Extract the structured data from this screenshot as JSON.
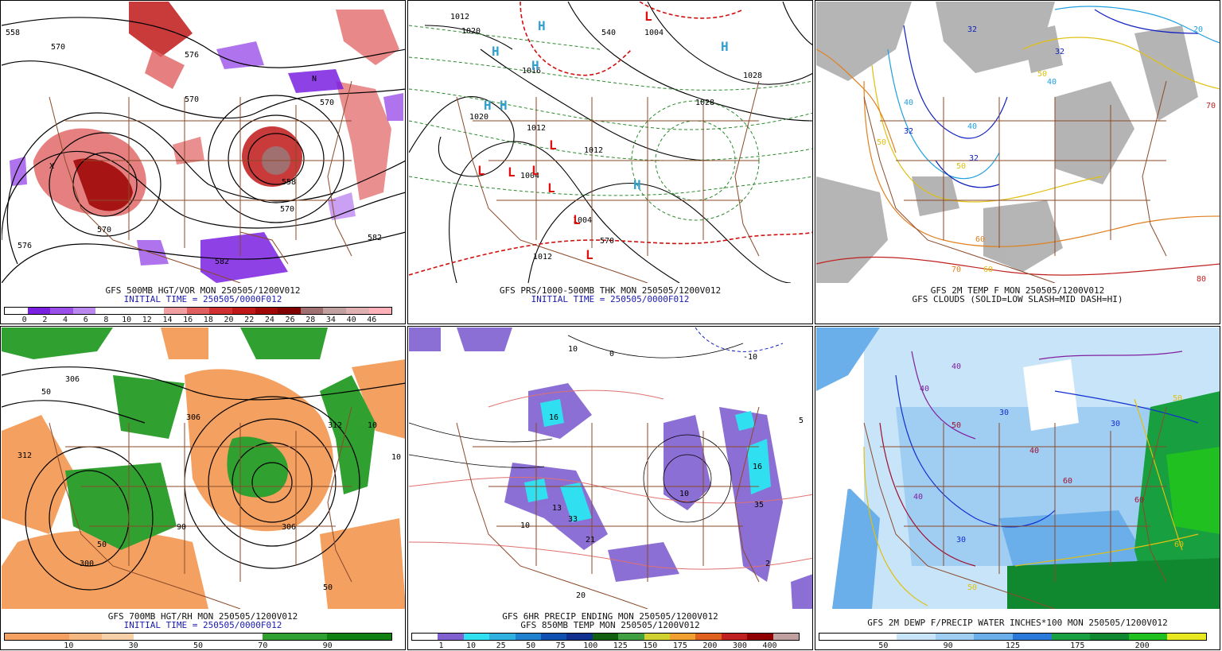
{
  "panels": [
    {
      "title": "GFS 500MB HGT/VOR MON 250505/1200V012",
      "subtitle": "INITIAL TIME = 250505/0000F012",
      "subtitle_color": "#1a1ab0",
      "colorbar": {
        "colors": [
          "#ffffff",
          "#7a20e0",
          "#9a50e8",
          "#bb88f0",
          "#ffffff",
          "#ffffff",
          "#ffffff",
          "#f0a0a0",
          "#e06060",
          "#d03030",
          "#c01818",
          "#a00808",
          "#800000",
          "#a07070",
          "#c0a0a0",
          "#e0b0b0",
          "#ffb0b8"
        ],
        "labels": [
          "0",
          "2",
          "4",
          "6",
          "8",
          "10",
          "12",
          "14",
          "16",
          "18",
          "20",
          "22",
          "24",
          "26",
          "28",
          "34",
          "40",
          "46"
        ]
      },
      "map_labels": [
        "570",
        "570",
        "576",
        "582",
        "570",
        "558",
        "558",
        "570",
        "570",
        "576",
        "582",
        "N",
        "X"
      ]
    },
    {
      "title": "GFS PRS/1000-500MB THK MON 250505/1200V012",
      "subtitle": "INITIAL TIME = 250505/0000F012",
      "subtitle_color": "#1a1ab0",
      "map_labels": [
        "1012",
        "1020",
        "1016",
        "1004",
        "1012",
        "1004",
        "1012",
        "1004",
        "1028",
        "1020",
        "1012",
        "1028",
        "540",
        "570"
      ],
      "highs": [
        "H",
        "H",
        "H",
        "H",
        "H",
        "H",
        "H"
      ],
      "lows": [
        "L",
        "L",
        "L",
        "L",
        "L",
        "L",
        "L",
        "L"
      ]
    },
    {
      "title": "GFS 2M TEMP F MON 250505/1200V012",
      "subtitle": "GFS CLOUDS (SOLID=LOW SLASH=MID DASH=HI)",
      "subtitle_color": "#111111",
      "map_labels": [
        "32",
        "32",
        "40",
        "32",
        "50",
        "40",
        "50",
        "40",
        "60",
        "70",
        "80",
        "70",
        "20",
        "60",
        "32",
        "50"
      ]
    },
    {
      "title": "GFS 700MB HGT/RH MON 250505/1200V012",
      "subtitle": "INITIAL TIME = 250505/0000F012",
      "subtitle_color": "#1a1ab0",
      "colorbar": {
        "colors": [
          "#f4a060",
          "#f4a060",
          "#f6b880",
          "#f8d0a8",
          "#ffffff",
          "#ffffff",
          "#ffffff",
          "#ffffff",
          "#30a030",
          "#30a030",
          "#108010",
          "#108010"
        ],
        "labels": [
          "10",
          "30",
          "50",
          "70",
          "90"
        ]
      },
      "map_labels": [
        "306",
        "312",
        "306",
        "300",
        "312",
        "306",
        "50",
        "10",
        "10",
        "50",
        "90",
        "50"
      ]
    },
    {
      "title": "GFS 6HR PRECIP ENDING MON 250505/1200V012",
      "subtitle": "GFS 850MB TEMP MON 250505/1200V012",
      "subtitle_color": "#111111",
      "colorbar": {
        "colors": [
          "#ffffff",
          "#8060d0",
          "#30e0f0",
          "#30b0e0",
          "#2080d0",
          "#1050b0",
          "#103090",
          "#106010",
          "#40a040",
          "#d0d030",
          "#f0a030",
          "#e06020",
          "#c02020",
          "#900000",
          "#c0a0a0"
        ],
        "labels": [
          "1",
          "10",
          "25",
          "50",
          "75",
          "100",
          "125",
          "150",
          "175",
          "200",
          "300",
          "400"
        ]
      },
      "map_labels": [
        "10",
        "16",
        "35",
        "13",
        "33",
        "10",
        "16",
        "21",
        "20",
        "5",
        "10",
        "0",
        "2",
        "-10"
      ]
    },
    {
      "title": "GFS 2M DEWP F/PRECIP WATER INCHES*100 MON 250505/1200V012",
      "subtitle": "",
      "subtitle_color": "#111111",
      "colorbar": {
        "colors": [
          "#ffffff",
          "#ffffff",
          "#c8e4f8",
          "#a0cef2",
          "#6aaeea",
          "#2a78d8",
          "#18a040",
          "#108830",
          "#20c020",
          "#e8e820"
        ],
        "labels": [
          "50",
          "90",
          "125",
          "175",
          "200"
        ]
      },
      "map_labels": [
        "30",
        "40",
        "50",
        "60",
        "30",
        "40",
        "50",
        "30",
        "40",
        "60",
        "60",
        "50",
        "40"
      ]
    }
  ]
}
